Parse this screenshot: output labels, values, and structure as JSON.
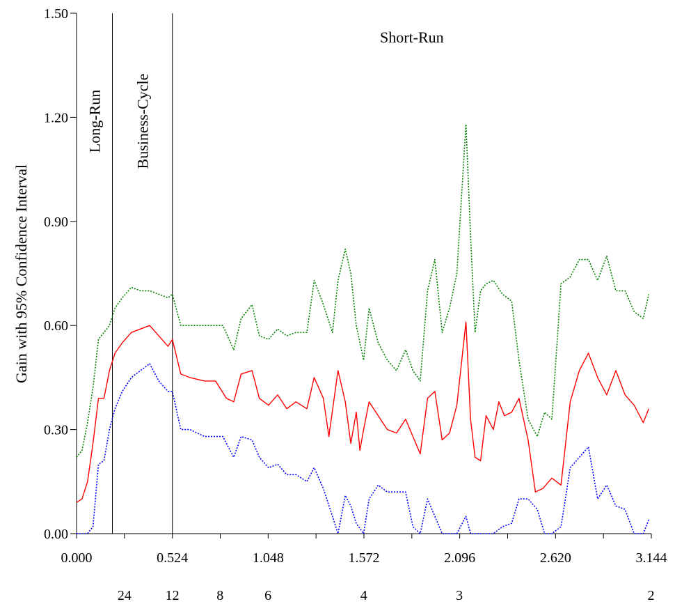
{
  "chart_data": {
    "type": "line",
    "title": "",
    "ylabel": "Gain with 95% Confidence Interval",
    "xlim": [
      0,
      3.144
    ],
    "ylim": [
      0,
      1.5
    ],
    "x_ticks": [
      0.0,
      0.262,
      0.524,
      0.786,
      1.048,
      1.31,
      1.572,
      1.834,
      2.096,
      2.358,
      2.62,
      2.882,
      3.144
    ],
    "x_tick_labels": [
      {
        "x": 0.0,
        "label": "0.000"
      },
      {
        "x": 0.524,
        "label": "0.524"
      },
      {
        "x": 1.048,
        "label": "1.048"
      },
      {
        "x": 1.572,
        "label": "1.572"
      },
      {
        "x": 2.096,
        "label": "2.096"
      },
      {
        "x": 2.62,
        "label": "2.620"
      },
      {
        "x": 3.144,
        "label": "3.144"
      }
    ],
    "y_ticks": [
      {
        "y": 0.0,
        "label": "0.00"
      },
      {
        "y": 0.3,
        "label": "0.30"
      },
      {
        "y": 0.6,
        "label": "0.60"
      },
      {
        "y": 0.9,
        "label": "0.90"
      },
      {
        "y": 1.2,
        "label": "1.20"
      },
      {
        "y": 1.5,
        "label": "1.50"
      }
    ],
    "period_labels": [
      {
        "x": 0.262,
        "label": "24"
      },
      {
        "x": 0.524,
        "label": "12"
      },
      {
        "x": 0.785,
        "label": "8"
      },
      {
        "x": 1.047,
        "label": "6"
      },
      {
        "x": 1.571,
        "label": "4"
      },
      {
        "x": 2.094,
        "label": "3"
      },
      {
        "x": 3.142,
        "label": "2"
      }
    ],
    "bands": [
      {
        "label": "Long-Run",
        "from": 0.0,
        "to": 0.196,
        "orientation": "vertical"
      },
      {
        "label": "Business-Cycle",
        "from": 0.196,
        "to": 0.524,
        "orientation": "vertical"
      },
      {
        "label": "Short-Run",
        "from": 0.524,
        "to": 3.144,
        "orientation": "horizontal"
      }
    ],
    "band_boundaries": [
      0.196,
      0.524
    ],
    "series": [
      {
        "color": "#008000",
        "style": "dotted",
        "x": [
          0,
          0.03,
          0.06,
          0.09,
          0.12,
          0.15,
          0.18,
          0.21,
          0.25,
          0.3,
          0.35,
          0.4,
          0.45,
          0.5,
          0.524,
          0.57,
          0.62,
          0.7,
          0.8,
          0.86,
          0.9,
          0.96,
          1.0,
          1.05,
          1.1,
          1.15,
          1.2,
          1.26,
          1.3,
          1.35,
          1.4,
          1.43,
          1.47,
          1.5,
          1.53,
          1.57,
          1.6,
          1.65,
          1.7,
          1.75,
          1.8,
          1.84,
          1.88,
          1.92,
          1.96,
          2.0,
          2.04,
          2.08,
          2.13,
          2.155,
          2.18,
          2.21,
          2.24,
          2.28,
          2.33,
          2.38,
          2.42,
          2.47,
          2.52,
          2.56,
          2.6,
          2.65,
          2.7,
          2.75,
          2.8,
          2.85,
          2.9,
          2.95,
          3.0,
          3.05,
          3.1,
          3.13
        ],
        "y": [
          0.22,
          0.24,
          0.32,
          0.42,
          0.56,
          0.58,
          0.6,
          0.65,
          0.68,
          0.71,
          0.7,
          0.7,
          0.69,
          0.68,
          0.69,
          0.6,
          0.6,
          0.6,
          0.6,
          0.53,
          0.62,
          0.66,
          0.57,
          0.56,
          0.59,
          0.57,
          0.58,
          0.58,
          0.73,
          0.66,
          0.58,
          0.73,
          0.82,
          0.75,
          0.6,
          0.5,
          0.65,
          0.55,
          0.5,
          0.47,
          0.53,
          0.47,
          0.44,
          0.7,
          0.79,
          0.58,
          0.65,
          0.75,
          1.18,
          0.86,
          0.58,
          0.7,
          0.72,
          0.73,
          0.69,
          0.67,
          0.5,
          0.33,
          0.28,
          0.35,
          0.33,
          0.72,
          0.74,
          0.79,
          0.79,
          0.73,
          0.8,
          0.7,
          0.7,
          0.64,
          0.62,
          0.69
        ]
      },
      {
        "color": "#ff0000",
        "style": "solid",
        "x": [
          0,
          0.03,
          0.06,
          0.09,
          0.12,
          0.15,
          0.18,
          0.21,
          0.25,
          0.3,
          0.35,
          0.4,
          0.45,
          0.5,
          0.524,
          0.57,
          0.62,
          0.7,
          0.76,
          0.82,
          0.86,
          0.9,
          0.96,
          1.0,
          1.05,
          1.1,
          1.15,
          1.2,
          1.26,
          1.3,
          1.35,
          1.38,
          1.43,
          1.47,
          1.5,
          1.53,
          1.55,
          1.57,
          1.6,
          1.65,
          1.7,
          1.75,
          1.8,
          1.84,
          1.88,
          1.92,
          1.96,
          2.0,
          2.04,
          2.08,
          2.13,
          2.155,
          2.18,
          2.21,
          2.24,
          2.28,
          2.31,
          2.34,
          2.38,
          2.42,
          2.47,
          2.51,
          2.55,
          2.6,
          2.65,
          2.7,
          2.75,
          2.8,
          2.85,
          2.9,
          2.95,
          3.0,
          3.05,
          3.1,
          3.13
        ],
        "y": [
          0.09,
          0.1,
          0.15,
          0.26,
          0.39,
          0.39,
          0.47,
          0.52,
          0.55,
          0.58,
          0.59,
          0.6,
          0.57,
          0.54,
          0.56,
          0.46,
          0.45,
          0.44,
          0.44,
          0.39,
          0.38,
          0.46,
          0.47,
          0.39,
          0.37,
          0.4,
          0.36,
          0.38,
          0.36,
          0.45,
          0.39,
          0.28,
          0.47,
          0.38,
          0.26,
          0.35,
          0.24,
          0.3,
          0.38,
          0.34,
          0.3,
          0.29,
          0.33,
          0.28,
          0.23,
          0.39,
          0.41,
          0.27,
          0.29,
          0.37,
          0.61,
          0.33,
          0.22,
          0.21,
          0.34,
          0.3,
          0.38,
          0.34,
          0.35,
          0.39,
          0.27,
          0.12,
          0.13,
          0.16,
          0.14,
          0.38,
          0.47,
          0.52,
          0.45,
          0.4,
          0.47,
          0.4,
          0.37,
          0.32,
          0.36
        ]
      },
      {
        "color": "#0000ff",
        "style": "dotted",
        "x": [
          0,
          0.03,
          0.06,
          0.09,
          0.12,
          0.15,
          0.18,
          0.21,
          0.25,
          0.3,
          0.35,
          0.4,
          0.45,
          0.5,
          0.524,
          0.57,
          0.62,
          0.7,
          0.8,
          0.86,
          0.9,
          0.96,
          1.0,
          1.05,
          1.1,
          1.15,
          1.2,
          1.26,
          1.3,
          1.35,
          1.4,
          1.43,
          1.47,
          1.5,
          1.53,
          1.57,
          1.6,
          1.65,
          1.7,
          1.75,
          1.8,
          1.84,
          1.88,
          1.92,
          1.96,
          2.0,
          2.04,
          2.08,
          2.13,
          2.155,
          2.18,
          2.21,
          2.24,
          2.28,
          2.33,
          2.38,
          2.42,
          2.47,
          2.52,
          2.56,
          2.6,
          2.65,
          2.7,
          2.75,
          2.8,
          2.85,
          2.9,
          2.95,
          3.0,
          3.05,
          3.1,
          3.13
        ],
        "y": [
          0.0,
          0.0,
          0.0,
          0.02,
          0.2,
          0.21,
          0.3,
          0.36,
          0.41,
          0.45,
          0.47,
          0.49,
          0.44,
          0.41,
          0.41,
          0.3,
          0.3,
          0.28,
          0.28,
          0.22,
          0.28,
          0.27,
          0.22,
          0.19,
          0.2,
          0.17,
          0.17,
          0.15,
          0.19,
          0.13,
          0.05,
          0.0,
          0.11,
          0.08,
          0.03,
          0.0,
          0.1,
          0.14,
          0.12,
          0.12,
          0.12,
          0.02,
          0.0,
          0.1,
          0.05,
          0.0,
          0.0,
          0.0,
          0.05,
          0.0,
          0.0,
          0.0,
          0.0,
          0.0,
          0.02,
          0.03,
          0.1,
          0.1,
          0.07,
          0.0,
          0.0,
          0.02,
          0.19,
          0.22,
          0.25,
          0.1,
          0.14,
          0.08,
          0.07,
          0.0,
          0.0,
          0.04
        ]
      }
    ]
  }
}
